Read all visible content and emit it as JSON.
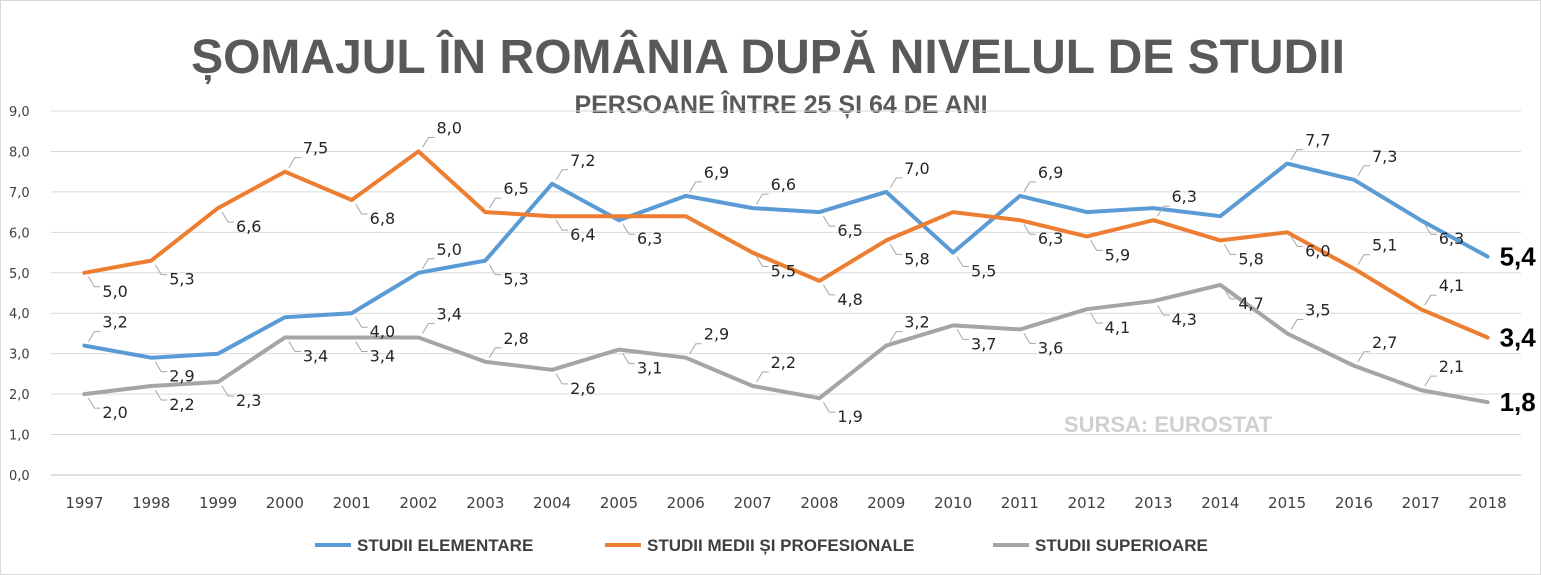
{
  "chart_data": {
    "type": "line",
    "title": "ȘOMAJUL ÎN ROMÂNIA DUPĂ NIVELUL DE STUDII",
    "subtitle": "PERSOANE ÎNTRE 25 ȘI 64 DE ANI",
    "source": "SURSA: EUROSTAT",
    "categories": [
      "1997",
      "1998",
      "1999",
      "2000",
      "2001",
      "2002",
      "2003",
      "2004",
      "2005",
      "2006",
      "2007",
      "2008",
      "2009",
      "2010",
      "2011",
      "2012",
      "2013",
      "2014",
      "2015",
      "2016",
      "2017",
      "2018"
    ],
    "yticks": [
      "0,0",
      "1,0",
      "2,0",
      "3,0",
      "4,0",
      "5,0",
      "6,0",
      "7,0",
      "8,0",
      "9,0"
    ],
    "ylim": [
      0,
      9
    ],
    "grid": true,
    "legend_position": "bottom",
    "series": [
      {
        "name": "STUDII ELEMENTARE",
        "color": "#5b9bd5",
        "values": [
          3.2,
          2.9,
          3.0,
          3.9,
          4.0,
          5.0,
          5.3,
          7.2,
          6.3,
          6.9,
          6.6,
          6.5,
          7.0,
          5.5,
          6.9,
          6.5,
          6.6,
          6.4,
          7.7,
          7.3,
          6.3,
          5.4
        ],
        "labels": [
          "3,2",
          "2,9",
          "",
          "",
          "4,0",
          "5,0",
          "5,3",
          "7,2",
          "6,3",
          "6,9",
          "6,6",
          "6,5",
          "7,0",
          "5,5",
          "6,9",
          "",
          "",
          "",
          "7,7",
          "7,3",
          "6,3",
          "5,4"
        ]
      },
      {
        "name": "STUDII MEDII ȘI PROFESIONALE",
        "color": "#ed7d31",
        "values": [
          5.0,
          5.3,
          6.6,
          7.5,
          6.8,
          8.0,
          6.5,
          6.4,
          6.4,
          6.4,
          5.5,
          4.8,
          5.8,
          6.5,
          6.3,
          5.9,
          6.3,
          5.8,
          6.0,
          5.1,
          4.1,
          3.4
        ],
        "labels": [
          "5,0",
          "5,3",
          "6,6",
          "7,5",
          "6,8",
          "8,0",
          "6,5",
          "6,4",
          "",
          "",
          "5,5",
          "4,8",
          "5,8",
          "",
          "6,3",
          "5,9",
          "6,3",
          "5,8",
          "6,0",
          "5,1",
          "4,1",
          "3,4"
        ]
      },
      {
        "name": "STUDII SUPERIOARE",
        "color": "#a5a5a5",
        "values": [
          2.0,
          2.2,
          2.3,
          3.4,
          3.4,
          3.4,
          2.8,
          2.6,
          3.1,
          2.9,
          2.2,
          1.9,
          3.2,
          3.7,
          3.6,
          4.1,
          4.3,
          4.7,
          3.5,
          2.7,
          2.1,
          1.8
        ],
        "labels": [
          "2,0",
          "2,2",
          "2,3",
          "3,4",
          "3,4",
          "3,4",
          "2,8",
          "2,6",
          "3,1",
          "2,9",
          "2,2",
          "1,9",
          "3,2",
          "3,7",
          "3,6",
          "4,1",
          "4,3",
          "4,7",
          "3,5",
          "2,7",
          "2,1",
          "1,8"
        ]
      }
    ]
  }
}
